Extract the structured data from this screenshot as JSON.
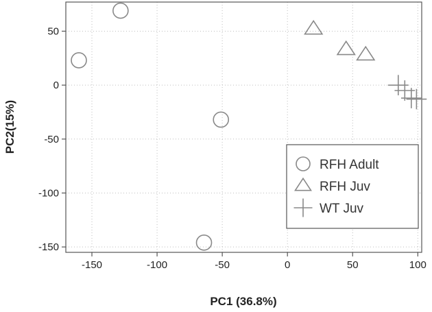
{
  "chart_data": {
    "type": "scatter",
    "xlabel": "PC1 (36.8%)",
    "ylabel": "PC2(15%)",
    "xlim": [
      -170,
      103
    ],
    "ylim": [
      -155,
      77
    ],
    "x_ticks": [
      -150,
      -100,
      -50,
      0,
      50,
      100
    ],
    "y_ticks": [
      -150,
      -100,
      -50,
      0,
      50
    ],
    "grid": true,
    "legend_position": "bottom-right",
    "marker_color": "#888888",
    "series": [
      {
        "name": "RFH Adult",
        "marker": "circle",
        "points": [
          {
            "x": -128,
            "y": 69
          },
          {
            "x": -160,
            "y": 23
          },
          {
            "x": -51,
            "y": -32
          },
          {
            "x": -64,
            "y": -146
          }
        ]
      },
      {
        "name": "RFH Juv",
        "marker": "triangle",
        "points": [
          {
            "x": 20,
            "y": 52
          },
          {
            "x": 45,
            "y": 33
          },
          {
            "x": 60,
            "y": 28
          }
        ]
      },
      {
        "name": "WT Juv",
        "marker": "plus",
        "points": [
          {
            "x": 85,
            "y": 0
          },
          {
            "x": 90,
            "y": -5
          },
          {
            "x": 95,
            "y": -12
          },
          {
            "x": 99,
            "y": -13
          }
        ]
      }
    ]
  }
}
